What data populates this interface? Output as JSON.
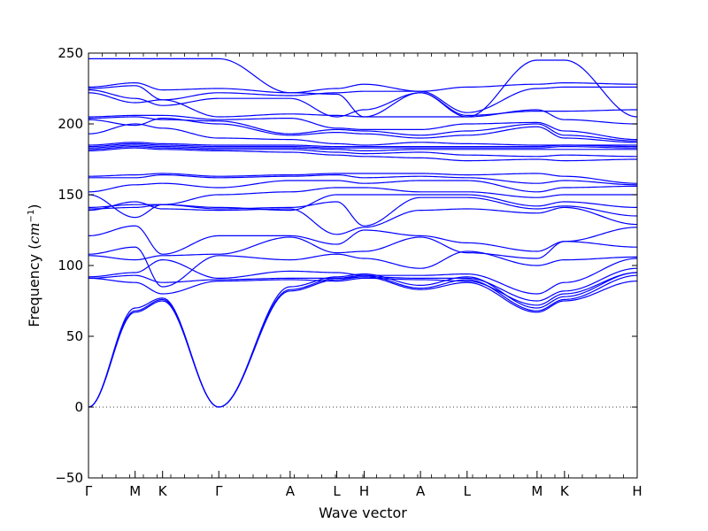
{
  "chart_data": {
    "type": "line",
    "title": "",
    "xlabel": "Wave vector",
    "ylabel_prefix": "Frequency (",
    "ylabel_unit": "cm",
    "ylabel_exp": "−1",
    "ylabel_suffix": ")",
    "ylim": [
      -50,
      250
    ],
    "yticks": [
      -50,
      0,
      50,
      100,
      150,
      200,
      250
    ],
    "ytick_labels": [
      "−50",
      "0",
      "50",
      "100",
      "150",
      "200",
      "250"
    ],
    "xlim": [
      0,
      20
    ],
    "x_points": [
      {
        "label": "Γ",
        "x": 0
      },
      {
        "label": "M",
        "x": 1.7
      },
      {
        "label": "K",
        "x": 2.7
      },
      {
        "label": "Γ",
        "x": 4.75
      },
      {
        "label": "A",
        "x": 7.35
      },
      {
        "label": "L",
        "x": 9.05
      },
      {
        "label": "H",
        "x": 10.05
      },
      {
        "label": "A",
        "x": 12.1
      },
      {
        "label": "L",
        "x": 13.8
      },
      {
        "label": "M",
        "x": 16.35
      },
      {
        "label": "K",
        "x": 17.35
      },
      {
        "label": "H",
        "x": 20
      }
    ],
    "zero_line": 0,
    "line_color": "#0000ff",
    "bands": [
      [
        0,
        67,
        75,
        0,
        82,
        90,
        92,
        83,
        88,
        67,
        75,
        89
      ],
      [
        0,
        68,
        76,
        0,
        83,
        91,
        93,
        84,
        90,
        68,
        76,
        93
      ],
      [
        0,
        70,
        77,
        0,
        85,
        92,
        94,
        86,
        92,
        70,
        78,
        95
      ],
      [
        91,
        88,
        80,
        89,
        90,
        89,
        91,
        90,
        89,
        72,
        80,
        95
      ],
      [
        91,
        93,
        88,
        90,
        91,
        91,
        92,
        91,
        91,
        75,
        82,
        98
      ],
      [
        92,
        95,
        104,
        91,
        96,
        95,
        93,
        93,
        94,
        80,
        88,
        105
      ],
      [
        108,
        113,
        85,
        107,
        104,
        108,
        105,
        98,
        110,
        100,
        104,
        106
      ],
      [
        107,
        104,
        107,
        108,
        120,
        109,
        110,
        120,
        109,
        105,
        117,
        113
      ],
      [
        121,
        128,
        108,
        121,
        121,
        115,
        125,
        121,
        116,
        110,
        117,
        127
      ],
      [
        139,
        145,
        140,
        139,
        140,
        122,
        127,
        139,
        140,
        137,
        141,
        129
      ],
      [
        140,
        141,
        143,
        140,
        141,
        145,
        128,
        148,
        148,
        140,
        142,
        135
      ],
      [
        141,
        143,
        143,
        141,
        139,
        150,
        150,
        150,
        150,
        142,
        145,
        141
      ],
      [
        150,
        134,
        143,
        150,
        152,
        155,
        155,
        152,
        152,
        148,
        150,
        150
      ],
      [
        152,
        157,
        158,
        155,
        160,
        160,
        158,
        160,
        160,
        152,
        155,
        156
      ],
      [
        162,
        162,
        164,
        162,
        163,
        164,
        162,
        163,
        162,
        158,
        160,
        157
      ],
      [
        163,
        164,
        165,
        163,
        164,
        165,
        165,
        165,
        164,
        165,
        163,
        158
      ],
      [
        181,
        183,
        182,
        181,
        180,
        178,
        177,
        176,
        174,
        175,
        174,
        175
      ],
      [
        182,
        184,
        183,
        182,
        182,
        180,
        179,
        180,
        178,
        177,
        178,
        177
      ],
      [
        183,
        185,
        184,
        183,
        183,
        182,
        181,
        182,
        182,
        182,
        182,
        182
      ],
      [
        184,
        186,
        185,
        184,
        184,
        183,
        183,
        183,
        183,
        183,
        184,
        183
      ],
      [
        185,
        187,
        186,
        185,
        185,
        184,
        184,
        184,
        184,
        184,
        185,
        184
      ],
      [
        193,
        200,
        197,
        190,
        189,
        186,
        185,
        187,
        186,
        185,
        185,
        185
      ],
      [
        203,
        199,
        204,
        200,
        192,
        194,
        193,
        190,
        192,
        198,
        190,
        187
      ],
      [
        204,
        205,
        203,
        202,
        193,
        196,
        195,
        192,
        195,
        200,
        192,
        188
      ],
      [
        205,
        206,
        206,
        203,
        204,
        197,
        196,
        196,
        200,
        201,
        195,
        189
      ],
      [
        222,
        215,
        217,
        205,
        207,
        206,
        205,
        205,
        205,
        210,
        203,
        200
      ],
      [
        224,
        218,
        213,
        218,
        218,
        205,
        210,
        222,
        206,
        209,
        209,
        210
      ],
      [
        225,
        227,
        217,
        222,
        220,
        222,
        223,
        223,
        208,
        225,
        226,
        226
      ],
      [
        226,
        229,
        224,
        225,
        222,
        225,
        228,
        223,
        226,
        228,
        229,
        228
      ],
      [
        246,
        246,
        246,
        246,
        222,
        221,
        205,
        222,
        205,
        245,
        245,
        205
      ]
    ]
  }
}
